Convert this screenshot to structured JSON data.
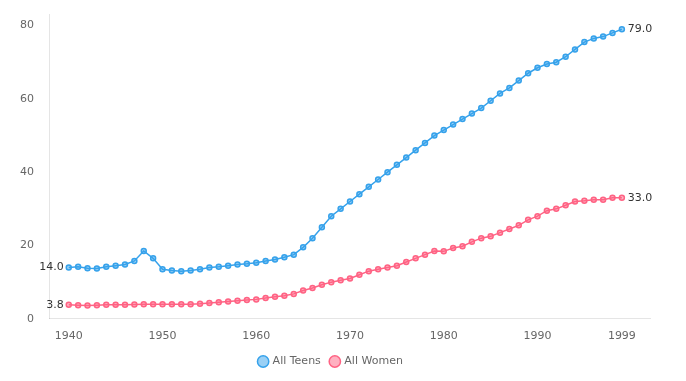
{
  "chart_data": {
    "type": "line",
    "x": [
      1940,
      1941,
      1942,
      1943,
      1944,
      1945,
      1946,
      1947,
      1948,
      1949,
      1950,
      1951,
      1952,
      1953,
      1954,
      1955,
      1956,
      1957,
      1958,
      1959,
      1960,
      1961,
      1962,
      1963,
      1964,
      1965,
      1966,
      1967,
      1968,
      1969,
      1970,
      1971,
      1972,
      1973,
      1974,
      1975,
      1976,
      1977,
      1978,
      1979,
      1980,
      1981,
      1982,
      1983,
      1984,
      1985,
      1986,
      1987,
      1988,
      1989,
      1990,
      1991,
      1992,
      1993,
      1994,
      1995,
      1996,
      1997,
      1998,
      1999
    ],
    "series": [
      {
        "name": "All Teens",
        "marker": "circle",
        "values": [
          14.0,
          14.2,
          13.8,
          13.7,
          14.2,
          14.5,
          14.8,
          15.8,
          18.5,
          16.5,
          13.5,
          13.2,
          13.0,
          13.2,
          13.5,
          14.0,
          14.2,
          14.5,
          14.8,
          15.0,
          15.3,
          15.8,
          16.2,
          16.8,
          17.5,
          19.5,
          22.0,
          25.0,
          28.0,
          30.0,
          32.0,
          34.0,
          36.0,
          38.0,
          40.0,
          42.0,
          44.0,
          46.0,
          48.0,
          50.0,
          51.5,
          53.0,
          54.5,
          56.0,
          57.5,
          59.5,
          61.5,
          63.0,
          65.0,
          67.0,
          68.5,
          69.5,
          70.0,
          71.5,
          73.5,
          75.5,
          76.5,
          77.0,
          78.0,
          79.0
        ]
      },
      {
        "name": "All Women",
        "marker": "circle",
        "values": [
          3.8,
          3.7,
          3.6,
          3.7,
          3.8,
          3.8,
          3.8,
          3.9,
          4.0,
          4.0,
          4.0,
          4.0,
          4.0,
          4.0,
          4.1,
          4.3,
          4.5,
          4.7,
          4.9,
          5.1,
          5.3,
          5.7,
          6.0,
          6.3,
          6.8,
          7.7,
          8.4,
          9.3,
          10.0,
          10.5,
          11.0,
          12.0,
          13.0,
          13.5,
          14.0,
          14.5,
          15.5,
          16.5,
          17.5,
          18.5,
          18.4,
          19.3,
          19.8,
          21.0,
          22.0,
          22.5,
          23.5,
          24.5,
          25.5,
          27.0,
          28.0,
          29.5,
          30.0,
          31.0,
          32.0,
          32.2,
          32.5,
          32.5,
          33.0,
          33.0
        ]
      }
    ],
    "xlim": [
      1938,
      2002
    ],
    "xticks": [
      1940,
      1950,
      1960,
      1970,
      1980,
      1990,
      1999
    ],
    "ylim": [
      0,
      83
    ],
    "yticks": [
      0,
      20,
      40,
      60,
      80
    ],
    "grid": false,
    "legend": "bottom",
    "annotations": [
      {
        "text": "79.0",
        "x": 1999,
        "y": 79.0
      },
      {
        "text": "33.0",
        "x": 1999,
        "y": 33.0
      },
      {
        "text": "14.0",
        "x": 1940,
        "y": 14.0
      },
      {
        "text": "3.8",
        "x": 1940,
        "y": 3.8
      }
    ]
  }
}
